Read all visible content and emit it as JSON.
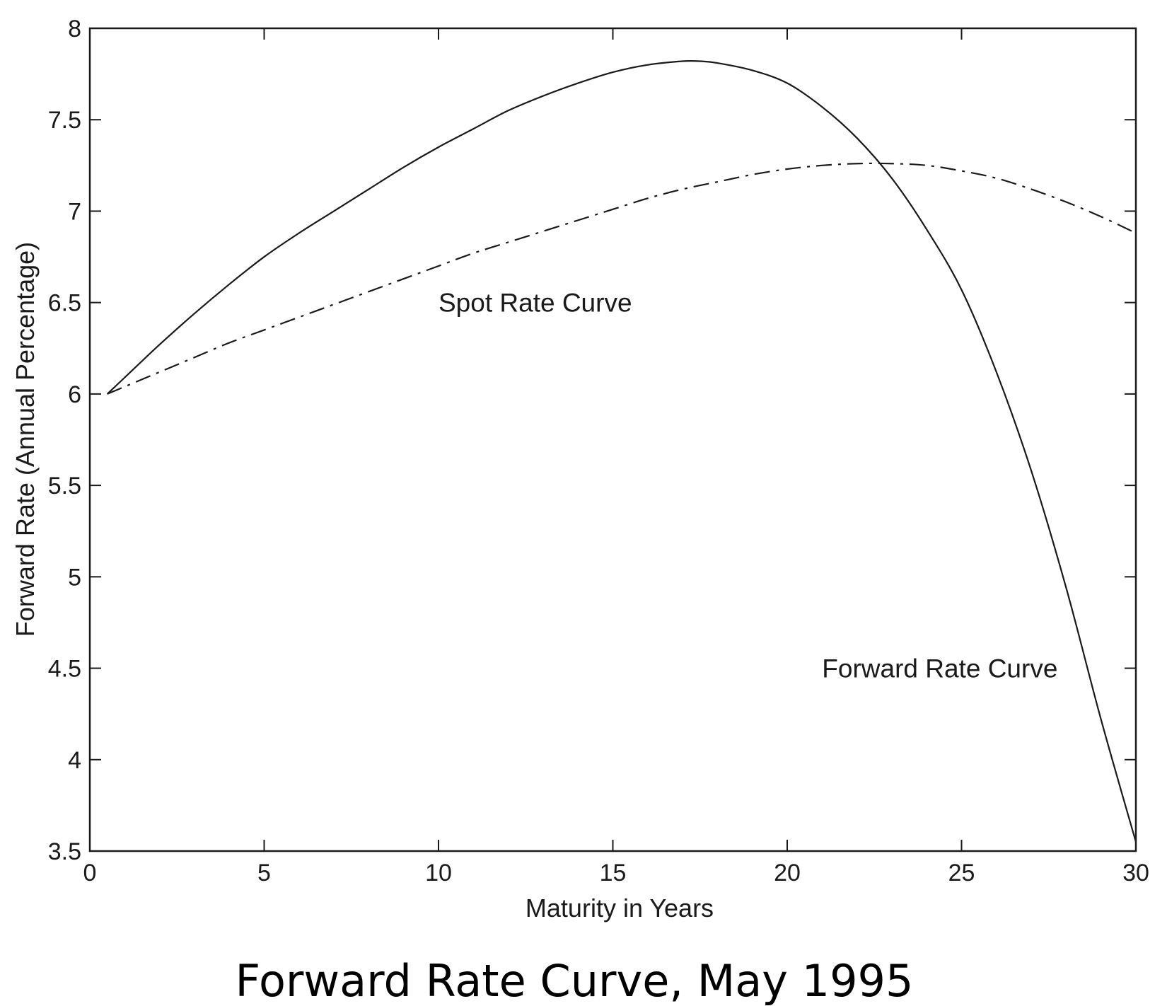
{
  "chart_data": {
    "type": "line",
    "caption": "Forward Rate Curve, May 1995",
    "xlabel": "Maturity in Years",
    "ylabel": "Forward Rate (Annual Percentage)",
    "xlim": [
      0,
      30
    ],
    "ylim": [
      3.5,
      8
    ],
    "x_ticks": [
      "0",
      "5",
      "10",
      "15",
      "20",
      "25",
      "30"
    ],
    "y_ticks": [
      "3.5",
      "4",
      "4.5",
      "5",
      "5.5",
      "6",
      "6.5",
      "7",
      "7.5",
      "8"
    ],
    "grid": false,
    "annotations": [
      {
        "text": "Spot Rate Curve",
        "x": 10,
        "y": 6.5
      },
      {
        "text": "Forward Rate Curve",
        "x": 21,
        "y": 4.5
      }
    ],
    "series": [
      {
        "style": "solid",
        "color": "#1a1a1a",
        "x": [
          0.5,
          1,
          2,
          3,
          4,
          5,
          6,
          7,
          8,
          9,
          10,
          11,
          12,
          13,
          14,
          15,
          16,
          17,
          17.5,
          18,
          19,
          20,
          21,
          22,
          23,
          24,
          25,
          26,
          27,
          28,
          29,
          30
        ],
        "y": [
          6.0,
          6.09,
          6.27,
          6.44,
          6.6,
          6.75,
          6.88,
          7.0,
          7.12,
          7.24,
          7.35,
          7.45,
          7.55,
          7.63,
          7.7,
          7.76,
          7.8,
          7.82,
          7.82,
          7.81,
          7.77,
          7.7,
          7.57,
          7.4,
          7.18,
          6.9,
          6.57,
          6.12,
          5.58,
          4.94,
          4.22,
          3.55
        ]
      },
      {
        "style": "dashdot",
        "color": "#1a1a1a",
        "x": [
          0.5,
          1,
          2,
          3,
          4,
          5,
          6,
          7,
          8,
          9,
          10,
          11,
          12,
          13,
          14,
          15,
          16,
          17,
          18,
          19,
          20,
          21,
          22,
          23,
          24,
          25,
          26,
          27,
          28,
          29,
          30
        ],
        "y": [
          6.0,
          6.04,
          6.12,
          6.2,
          6.28,
          6.35,
          6.42,
          6.49,
          6.56,
          6.63,
          6.7,
          6.77,
          6.83,
          6.89,
          6.95,
          7.01,
          7.07,
          7.12,
          7.16,
          7.2,
          7.23,
          7.25,
          7.26,
          7.26,
          7.25,
          7.22,
          7.18,
          7.12,
          7.05,
          6.97,
          6.88
        ]
      }
    ]
  }
}
